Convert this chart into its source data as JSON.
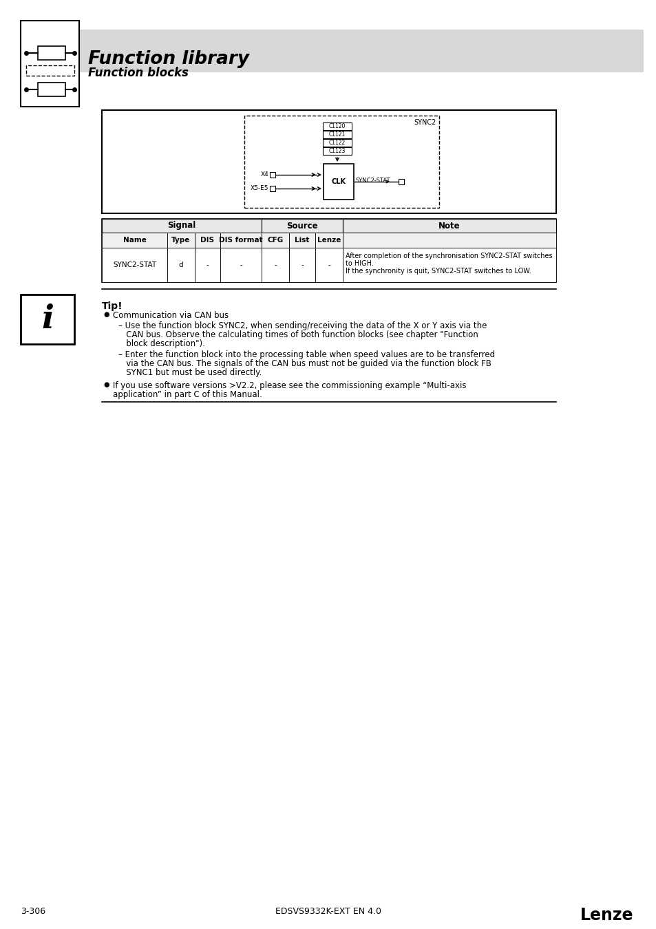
{
  "title": "Function library",
  "subtitle": "Function blocks",
  "bg_color": "#ffffff",
  "header_bg": "#d8d8d8",
  "page_number": "3-306",
  "doc_id": "EDSVS9332K-EXT EN 4.0",
  "brand": "Lenze",
  "table_row": [
    "SYNC2-STAT",
    "d",
    "-",
    "-",
    "-",
    "-",
    "-"
  ],
  "table_note_line1": "After completion of the synchronisation SYNC2-STAT switches",
  "table_note_line2": "to HIGH.",
  "table_note_line3": "If the synchronity is quit, SYNC2-STAT switches to LOW.",
  "tip_title": "Tip!",
  "tip_bullet1": "Communication via CAN bus",
  "tip_sub1_line1": "– Use the function block SYNC2, when sending/receiving the data of the X or Y axis via the",
  "tip_sub1_line2": "   CAN bus. Observe the calculating times of both function blocks (see chapter \"Function",
  "tip_sub1_line3": "   block description\").",
  "tip_sub2_line1": "– Enter the function block into the processing table when speed values are to be transferred",
  "tip_sub2_line2": "   via the CAN bus. The signals of the CAN bus must not be guided via the function block FB",
  "tip_sub2_line3": "   SYNC1 but must be used directly.",
  "tip_bullet2_line1": "If you use software versions >V2.2, please see the commissioning example “Multi-axis",
  "tip_bullet2_line2": "application” in part C of this Manual.",
  "diagram_sync2": "SYNC2",
  "diagram_c1120": "C1120",
  "diagram_c1121": "C1121",
  "diagram_c1122": "C1122",
  "diagram_c1123": "C1123",
  "diagram_x4": "X4",
  "diagram_x5e5": "X5-E5",
  "diagram_clk": "CLK",
  "diagram_sync2stat": "SYNC2-STAT"
}
